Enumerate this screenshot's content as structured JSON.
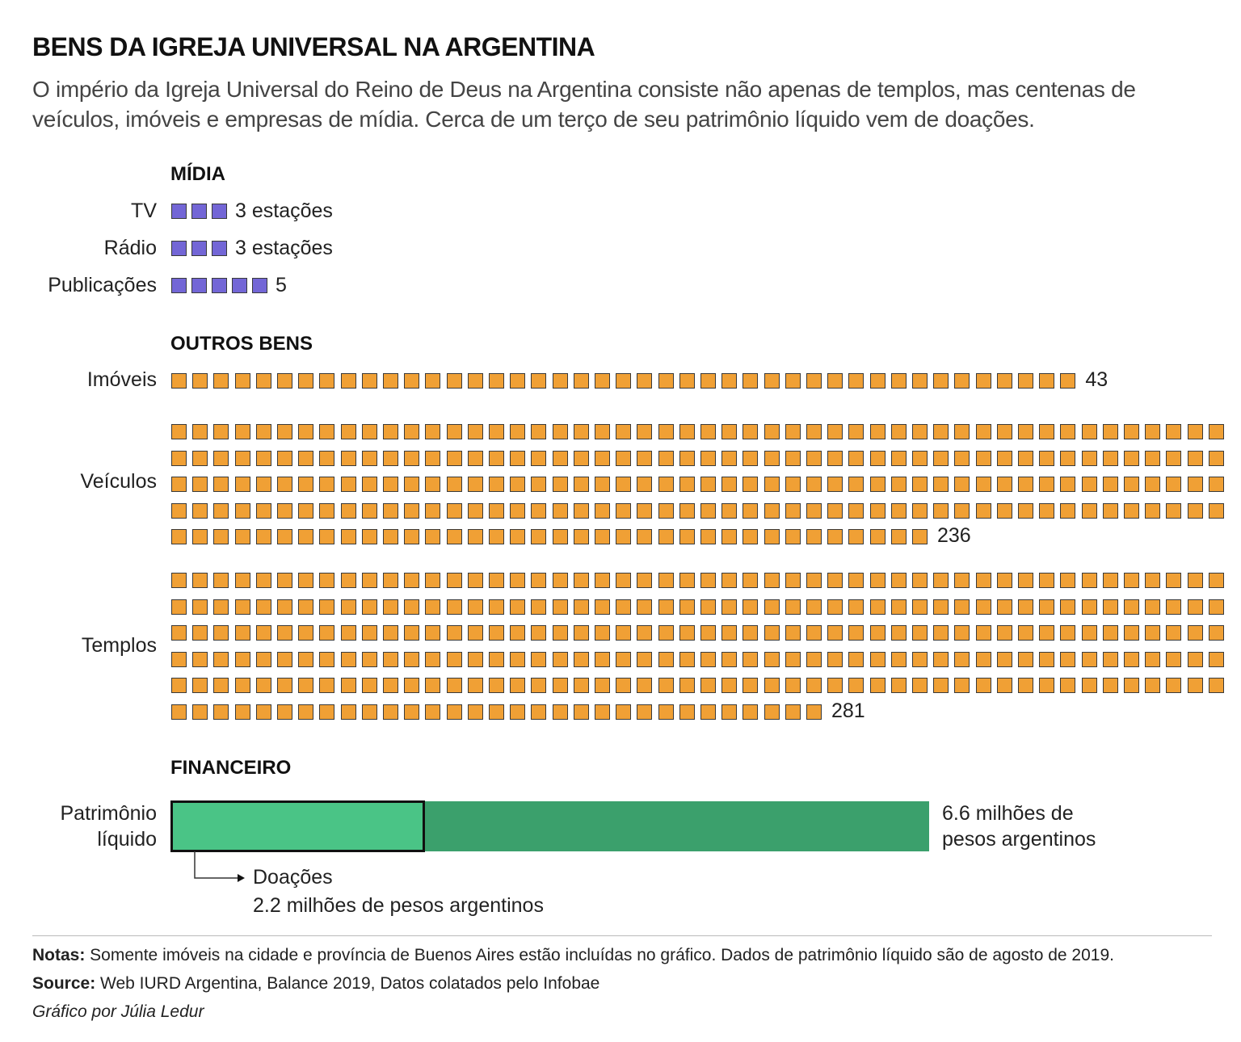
{
  "title": "BENS DA IGREJA UNIVERSAL NA ARGENTINA",
  "subtitle": "O império da Igreja Universal do Reino de Deus na Argentina consiste não apenas de templos, mas centenas de veículos, imóveis e empresas de mídia. Cerca de um terço de seu patrimônio líquido vem de doações.",
  "colors": {
    "midia": "#7366d6",
    "outros": "#f0a035",
    "donations": "#4ac486",
    "net_worth": "#3ba06c"
  },
  "chart_data": [
    {
      "type": "pictogram",
      "section": "MÍDIA",
      "categories": [
        "TV",
        "Rádio",
        "Publicações"
      ],
      "values": [
        3,
        3,
        5
      ],
      "value_labels": [
        "3 estações",
        "3 estações",
        "5"
      ]
    },
    {
      "type": "pictogram",
      "section": "OUTROS BENS",
      "categories": [
        "Imóveis",
        "Veículos",
        "Templos"
      ],
      "values": [
        43,
        236,
        281
      ],
      "value_labels": [
        "43",
        "236",
        "281"
      ]
    },
    {
      "type": "bar",
      "section": "FINANCEIRO",
      "category": "Patrimônio líquido",
      "category_lines": [
        "Patrimônio",
        "líquido"
      ],
      "unit": "milhões de pesos argentinos",
      "total": 6.6,
      "total_label_lines": [
        "6.6 milhões de",
        "pesos argentinos"
      ],
      "donations": 2.2,
      "donations_label": "Doações",
      "donations_value_label": "2.2 milhões de pesos argentinos"
    }
  ],
  "notes": {
    "notes_label": "Notas:",
    "notes_text": " Somente imóveis na cidade e província de Buenos Aires estão incluídas no gráfico. Dados de patrimônio líquido são de agosto de 2019.",
    "source_label": "Source:",
    "source_text": " Web IURD Argentina, Balance 2019, Datos colatados pelo Infobae",
    "credit": "Gráfico por Júlia Ledur"
  }
}
